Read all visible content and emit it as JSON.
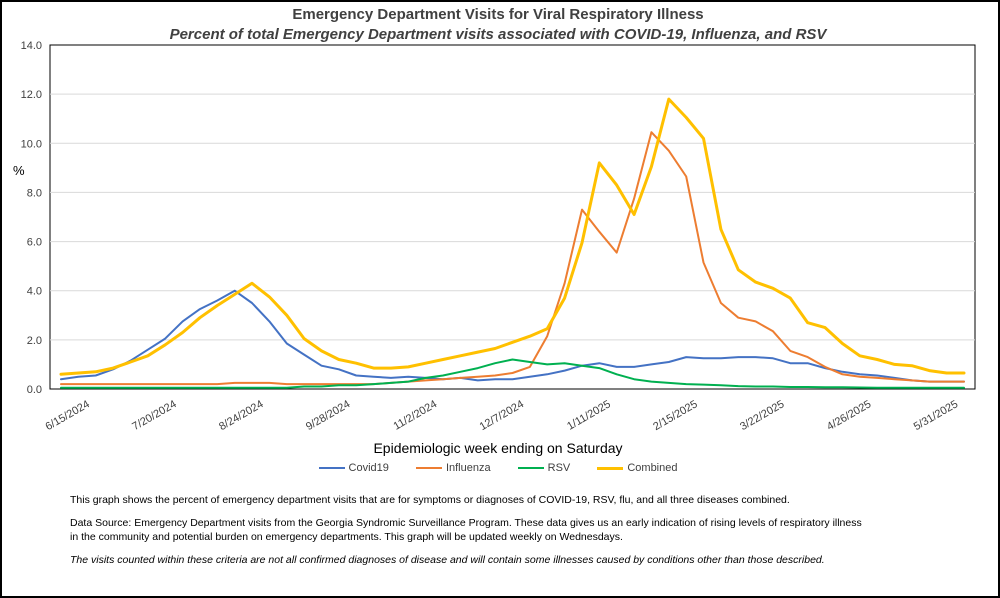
{
  "chart_data": {
    "type": "line",
    "title": "Emergency Department Visits for Viral Respiratory Illness",
    "subtitle": "Percent of total Emergency Department visits associated with COVID-19, Influenza, and RSV",
    "xlabel": "Epidemiologic  week ending on Saturday",
    "ylabel": "%",
    "ylim": [
      0,
      14
    ],
    "yticks": [
      "0.0",
      "2.0",
      "4.0",
      "6.0",
      "8.0",
      "10.0",
      "12.0",
      "14.0"
    ],
    "x_tick_labels": [
      "6/15/2024",
      "7/20/2024",
      "8/24/2024",
      "9/28/2024",
      "11/2/2024",
      "12/7/2024",
      "1/11/2025",
      "2/15/2025",
      "3/22/2025",
      "4/26/2025",
      "5/31/2025"
    ],
    "x_tick_positions": [
      1,
      6,
      11,
      16,
      21,
      26,
      31,
      36,
      41,
      46,
      51
    ],
    "grid": true,
    "legend_position": "bottom",
    "series": [
      {
        "name": "Covid19",
        "color": "#4472C4",
        "values": [
          0.4,
          0.5,
          0.55,
          0.8,
          1.15,
          1.6,
          2.05,
          2.75,
          3.25,
          3.6,
          4.0,
          3.5,
          2.75,
          1.85,
          1.4,
          0.95,
          0.8,
          0.55,
          0.5,
          0.45,
          0.5,
          0.45,
          0.4,
          0.45,
          0.35,
          0.4,
          0.4,
          0.5,
          0.6,
          0.75,
          0.95,
          1.05,
          0.9,
          0.9,
          1.0,
          1.1,
          1.3,
          1.25,
          1.25,
          1.3,
          1.3,
          1.25,
          1.05,
          1.05,
          0.85,
          0.7,
          0.6,
          0.55,
          0.45,
          0.35,
          0.3,
          0.3,
          0.3
        ]
      },
      {
        "name": "Influenza",
        "color": "#ED7D31",
        "values": [
          0.2,
          0.2,
          0.2,
          0.2,
          0.2,
          0.2,
          0.2,
          0.2,
          0.2,
          0.2,
          0.25,
          0.25,
          0.25,
          0.2,
          0.2,
          0.2,
          0.2,
          0.2,
          0.2,
          0.25,
          0.3,
          0.35,
          0.4,
          0.45,
          0.5,
          0.55,
          0.65,
          0.9,
          2.15,
          4.3,
          7.3,
          6.4,
          5.55,
          7.75,
          10.45,
          9.7,
          8.65,
          5.15,
          3.5,
          2.9,
          2.75,
          2.35,
          1.55,
          1.3,
          0.9,
          0.6,
          0.5,
          0.45,
          0.4,
          0.35,
          0.3,
          0.3,
          0.3
        ]
      },
      {
        "name": "RSV",
        "color": "#00B050",
        "values": [
          0.05,
          0.05,
          0.05,
          0.05,
          0.05,
          0.05,
          0.05,
          0.05,
          0.05,
          0.05,
          0.05,
          0.05,
          0.05,
          0.05,
          0.1,
          0.1,
          0.15,
          0.15,
          0.2,
          0.25,
          0.3,
          0.45,
          0.55,
          0.7,
          0.85,
          1.05,
          1.2,
          1.1,
          1.0,
          1.05,
          0.95,
          0.85,
          0.6,
          0.4,
          0.3,
          0.25,
          0.2,
          0.18,
          0.15,
          0.12,
          0.1,
          0.1,
          0.08,
          0.08,
          0.07,
          0.07,
          0.06,
          0.05,
          0.05,
          0.05,
          0.05,
          0.05,
          0.05
        ]
      },
      {
        "name": "Combined",
        "color": "#FFC000",
        "values": [
          0.6,
          0.65,
          0.7,
          0.85,
          1.1,
          1.35,
          1.8,
          2.3,
          2.9,
          3.4,
          3.85,
          4.3,
          3.75,
          3.0,
          2.05,
          1.55,
          1.2,
          1.05,
          0.85,
          0.85,
          0.9,
          1.05,
          1.2,
          1.35,
          1.5,
          1.65,
          1.9,
          2.15,
          2.45,
          3.7,
          5.95,
          9.2,
          8.3,
          7.1,
          9.05,
          11.8,
          11.05,
          10.2,
          6.5,
          4.85,
          4.35,
          4.1,
          3.7,
          2.7,
          2.5,
          1.85,
          1.35,
          1.2,
          1.0,
          0.95,
          0.75,
          0.65,
          0.65
        ]
      }
    ]
  },
  "legend": {
    "items": [
      {
        "label": "Covid19",
        "color": "#4472C4"
      },
      {
        "label": "Influenza",
        "color": "#ED7D31"
      },
      {
        "label": "RSV",
        "color": "#00B050"
      },
      {
        "label": "Combined",
        "color": "#FFC000"
      }
    ]
  },
  "notes": {
    "description": "This graph shows the percent of emergency department visits that are for symptoms or diagnoses of COVID-19, RSV, flu, and all three diseases combined.",
    "source": "Data Source: Emergency Department visits from the Georgia Syndromic Surveillance Program. These data gives us an early indication of rising levels of respiratory illness in the community and potential burden on emergency departments. This graph will be updated weekly on Wednesdays.",
    "disclaimer": "The visits counted within these criteria are not all confirmed diagnoses of disease and will contain some illnesses caused by conditions other than those described."
  }
}
